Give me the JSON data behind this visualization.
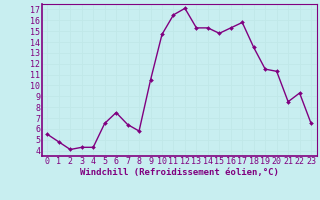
{
  "x": [
    0,
    1,
    2,
    3,
    4,
    5,
    6,
    7,
    8,
    9,
    10,
    11,
    12,
    13,
    14,
    15,
    16,
    17,
    18,
    19,
    20,
    21,
    22,
    23
  ],
  "y": [
    5.5,
    4.8,
    4.1,
    4.3,
    4.3,
    6.5,
    7.5,
    6.4,
    5.8,
    10.5,
    14.7,
    16.5,
    17.1,
    15.3,
    15.3,
    14.8,
    15.3,
    15.8,
    13.5,
    11.5,
    11.3,
    8.5,
    9.3,
    6.5
  ],
  "line_color": "#800080",
  "marker": "D",
  "marker_size": 2.0,
  "bg_color": "#c8eef0",
  "grid_color": "#aadddd",
  "xlabel": "Windchill (Refroidissement éolien,°C)",
  "xlim": [
    -0.5,
    23.5
  ],
  "ylim": [
    3.5,
    17.5
  ],
  "yticks": [
    4,
    5,
    6,
    7,
    8,
    9,
    10,
    11,
    12,
    13,
    14,
    15,
    16,
    17
  ],
  "xticks": [
    0,
    1,
    2,
    3,
    4,
    5,
    6,
    7,
    8,
    9,
    10,
    11,
    12,
    13,
    14,
    15,
    16,
    17,
    18,
    19,
    20,
    21,
    22,
    23
  ],
  "xlabel_fontsize": 6.5,
  "tick_fontsize": 6.0,
  "spine_color": "#800080",
  "linewidth": 1.0
}
